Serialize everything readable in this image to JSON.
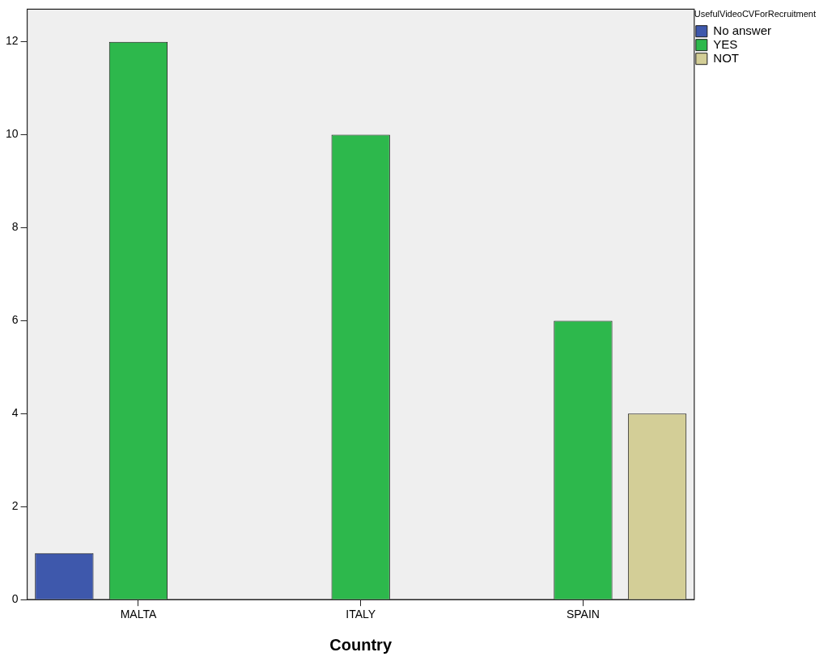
{
  "chart_data": {
    "type": "bar",
    "xlabel": "Country",
    "legend_title": "UsefulVideoCVForRecruitment",
    "categories": [
      "MALTA",
      "ITALY",
      "SPAIN"
    ],
    "series": [
      {
        "name": "No answer",
        "color": "#3e58ac",
        "values": [
          1,
          null,
          null
        ]
      },
      {
        "name": "YES",
        "color": "#2db84c",
        "values": [
          12,
          10,
          6
        ]
      },
      {
        "name": "NOT",
        "color": "#d3ce97",
        "values": [
          null,
          null,
          4
        ]
      }
    ],
    "ylim": [
      0,
      12.7
    ],
    "yticks": [
      0,
      2,
      4,
      6,
      8,
      10,
      12
    ],
    "grid": false,
    "legend": "top right"
  }
}
